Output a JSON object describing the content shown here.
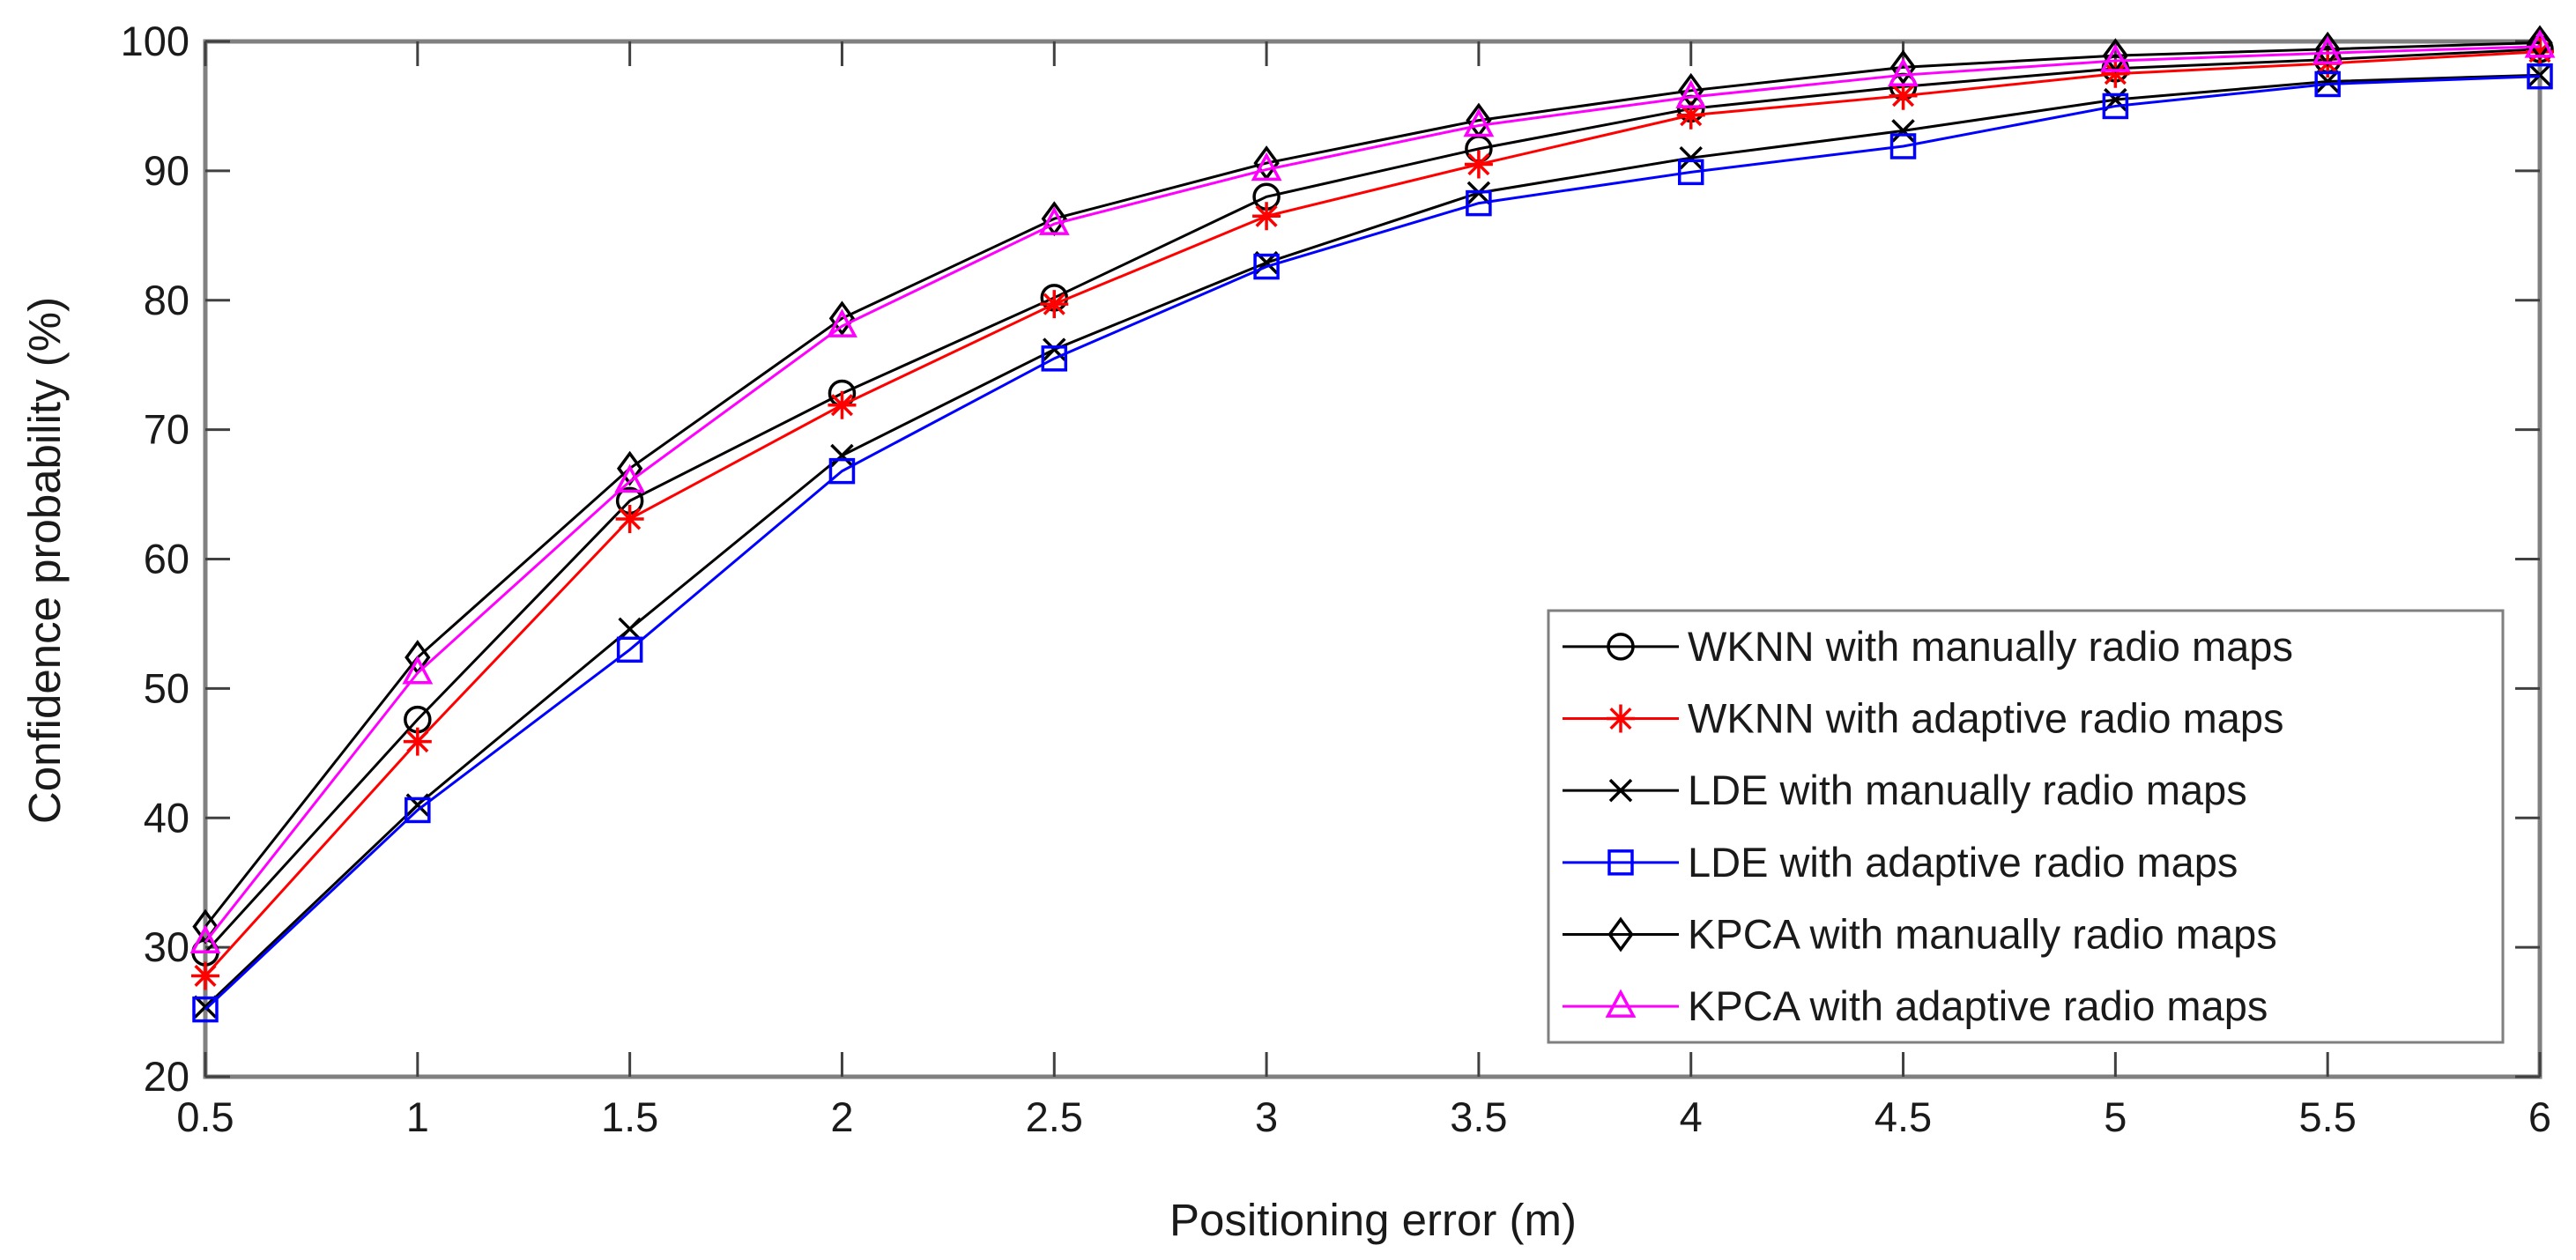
{
  "figure": {
    "background": "#ffffff",
    "axis_box_color": "#808080",
    "tick_color": "#404040",
    "text_color": "#1a1a1a"
  },
  "chart_data": {
    "type": "line",
    "title": "",
    "xlabel": "Positioning error (m)",
    "ylabel": "Confidence probability (%)",
    "xlim": [
      0.5,
      6
    ],
    "ylim": [
      20,
      100
    ],
    "grid": false,
    "legend_position": "inside lower right",
    "x_tick_labels": [
      "0.5",
      "1",
      "1.5",
      "2",
      "2.5",
      "3",
      "3.5",
      "4",
      "4.5",
      "5",
      "5.5",
      "6"
    ],
    "y_tick_labels": [
      "20",
      "30",
      "40",
      "50",
      "60",
      "70",
      "80",
      "90",
      "100"
    ],
    "x_ticks": [
      0.5,
      1,
      1.5,
      2,
      2.5,
      3,
      3.5,
      4,
      4.5,
      5,
      5.5,
      6
    ],
    "y_ticks": [
      20,
      30,
      40,
      50,
      60,
      70,
      80,
      90,
      100
    ],
    "x": [
      0.5,
      1,
      1.5,
      2,
      2.5,
      3,
      3.5,
      4,
      4.5,
      5,
      5.5,
      6
    ],
    "series": [
      {
        "name": "WKNN with manually radio maps",
        "color": "#000000",
        "marker": "circle",
        "values": [
          29.6,
          47.6,
          64.5,
          72.8,
          80.2,
          88.0,
          91.7,
          94.8,
          96.5,
          97.9,
          98.6,
          99.4
        ]
      },
      {
        "name": "WKNN with adaptive radio maps",
        "color": "#ff0000",
        "marker": "asterisk",
        "values": [
          27.8,
          45.9,
          63.1,
          71.9,
          79.7,
          86.5,
          90.5,
          94.3,
          95.8,
          97.5,
          98.3,
          99.2
        ]
      },
      {
        "name": "LDE with manually radio maps",
        "color": "#000000",
        "marker": "x",
        "values": [
          25.4,
          41.0,
          54.6,
          68.0,
          76.2,
          82.9,
          88.3,
          91.0,
          93.1,
          95.5,
          96.9,
          97.4
        ]
      },
      {
        "name": "LDE with adaptive radio maps",
        "color": "#0000ff",
        "marker": "square",
        "values": [
          25.2,
          40.6,
          53.0,
          66.8,
          75.5,
          82.6,
          87.5,
          89.9,
          91.9,
          95.0,
          96.7,
          97.3
        ]
      },
      {
        "name": "KPCA with manually radio maps",
        "color": "#000000",
        "marker": "diamond",
        "values": [
          31.6,
          52.4,
          67.0,
          78.6,
          86.3,
          90.6,
          93.9,
          96.2,
          98.0,
          98.9,
          99.4,
          99.9
        ]
      },
      {
        "name": "KPCA with adaptive radio maps",
        "color": "#ff00ff",
        "marker": "triangle",
        "values": [
          30.4,
          51.2,
          66.0,
          78.0,
          85.9,
          90.1,
          93.5,
          95.7,
          97.4,
          98.5,
          99.1,
          99.6
        ]
      }
    ]
  }
}
